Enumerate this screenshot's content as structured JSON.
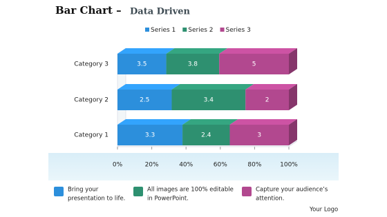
{
  "chart_data": {
    "type": "bar",
    "orientation": "horizontal",
    "stacking": "percent",
    "title": "Bar Chart –",
    "subtitle": "Data Driven",
    "categories": [
      "Category 1",
      "Category 2",
      "Category 3"
    ],
    "series": [
      {
        "name": "Series 1",
        "color": "#2c8fdc",
        "values": [
          3.3,
          2.5,
          3.5
        ]
      },
      {
        "name": "Series 2",
        "color": "#2e9070",
        "values": [
          2.4,
          3.4,
          3.8
        ]
      },
      {
        "name": "Series 3",
        "color": "#b2488f",
        "values": [
          3,
          2,
          5
        ]
      }
    ],
    "xlim": [
      0,
      100
    ],
    "xticks": [
      {
        "value": 0,
        "label": "0%"
      },
      {
        "value": 20,
        "label": "20%"
      },
      {
        "value": 40,
        "label": "40%"
      },
      {
        "value": 60,
        "label": "60%"
      },
      {
        "value": 80,
        "label": "80%"
      },
      {
        "value": 100,
        "label": "100%"
      }
    ],
    "grid": false,
    "legend": "top"
  },
  "footer": {
    "items": [
      {
        "lines": [
          "Bring your",
          "presentation to life."
        ],
        "color": "#2c8fdc"
      },
      {
        "lines": [
          "All images are 100% editable",
          "in PowerPoint."
        ],
        "color": "#2e9070"
      },
      {
        "lines": [
          "Capture your audience’s",
          "attention."
        ],
        "color": "#b2488f"
      }
    ],
    "logo": "Your Logo"
  }
}
